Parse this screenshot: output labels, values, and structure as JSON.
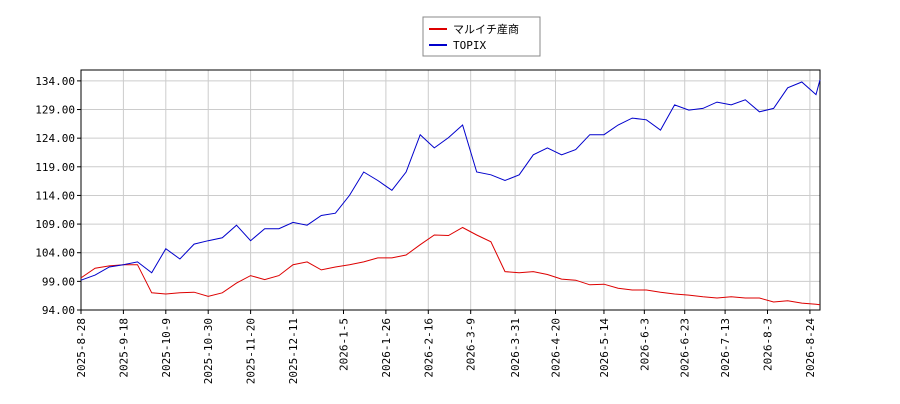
{
  "chart_data": {
    "type": "line",
    "x": [
      "2025-8-28",
      "2025-9-4",
      "2025-9-11",
      "2025-9-18",
      "2025-9-25",
      "2025-10-2",
      "2025-10-9",
      "2025-10-16",
      "2025-10-23",
      "2025-10-30",
      "2025-11-6",
      "2025-11-13",
      "2025-11-20",
      "2025-11-27",
      "2025-12-4",
      "2025-12-11",
      "2025-12-18",
      "2025-12-25",
      "2026-1-1",
      "2026-1-8",
      "2026-1-15",
      "2026-1-22",
      "2026-1-29",
      "2026-2-5",
      "2026-2-12",
      "2026-2-19",
      "2026-2-26",
      "2026-3-5",
      "2026-3-12",
      "2026-3-19",
      "2026-3-26",
      "2026-4-2",
      "2026-4-9",
      "2026-4-16",
      "2026-4-23",
      "2026-4-30",
      "2026-5-7",
      "2026-5-14",
      "2026-5-21",
      "2026-5-28",
      "2026-6-4",
      "2026-6-11",
      "2026-6-18",
      "2026-6-25",
      "2026-7-2",
      "2026-7-9",
      "2026-7-16",
      "2026-7-23",
      "2026-7-30",
      "2026-8-6",
      "2026-8-13",
      "2026-8-20",
      "2026-8-27",
      "2026-8-29"
    ],
    "series": [
      {
        "name": "マルイチ産商",
        "color": "#dd0000",
        "values": [
          99.6,
          101.3,
          101.7,
          101.9,
          101.9,
          97.0,
          96.8,
          97.0,
          97.1,
          96.4,
          97.0,
          98.7,
          100.0,
          99.3,
          100.0,
          101.9,
          102.4,
          101.0,
          101.5,
          101.9,
          102.4,
          103.1,
          103.1,
          103.6,
          105.4,
          107.1,
          107.0,
          108.4,
          107.1,
          105.9,
          100.7,
          100.5,
          100.7,
          100.2,
          99.4,
          99.2,
          98.4,
          98.5,
          97.8,
          97.5,
          97.5,
          97.1,
          96.8,
          96.6,
          96.3,
          96.1,
          96.3,
          96.1,
          96.1,
          95.4,
          95.6,
          95.2,
          95.0,
          94.9
        ]
      },
      {
        "name": "TOPIX",
        "color": "#0000cc",
        "values": [
          99.2,
          100.1,
          101.5,
          101.9,
          102.4,
          100.5,
          104.7,
          102.9,
          105.5,
          106.1,
          106.6,
          108.8,
          106.1,
          108.2,
          108.2,
          109.3,
          108.8,
          110.5,
          110.9,
          114.0,
          118.1,
          116.6,
          114.9,
          118.1,
          124.6,
          122.3,
          124.1,
          126.3,
          118.1,
          117.6,
          116.6,
          117.6,
          121.1,
          122.3,
          121.1,
          122.0,
          124.6,
          124.6,
          126.3,
          127.5,
          127.2,
          125.4,
          129.8,
          128.9,
          129.2,
          130.3,
          129.8,
          130.7,
          128.6,
          129.2,
          132.8,
          133.8,
          131.6,
          134.2
        ]
      }
    ],
    "xlim": [
      "2025-8-28",
      "2026-8-29"
    ],
    "xticks": [
      "2025-8-28",
      "2025-9-18",
      "2025-10-9",
      "2025-10-30",
      "2025-11-20",
      "2025-12-11",
      "2026-1-5",
      "2026-1-26",
      "2026-2-16",
      "2026-3-9",
      "2026-3-31",
      "2026-4-20",
      "2026-5-14",
      "2026-6-3",
      "2026-6-23",
      "2026-7-13",
      "2026-8-3",
      "2026-8-24"
    ],
    "ylim": [
      94,
      135.9
    ],
    "yticks": [
      {
        "value": 94,
        "label": "94.00"
      },
      {
        "value": 99,
        "label": "99.00"
      },
      {
        "value": 104,
        "label": "104.00"
      },
      {
        "value": 109,
        "label": "109.00"
      },
      {
        "value": 114,
        "label": "114.00"
      },
      {
        "value": 119,
        "label": "119.00"
      },
      {
        "value": 124,
        "label": "124.00"
      },
      {
        "value": 129,
        "label": "129.00"
      },
      {
        "value": 134,
        "label": "134.00"
      }
    ],
    "grid": true,
    "legend": "top"
  }
}
